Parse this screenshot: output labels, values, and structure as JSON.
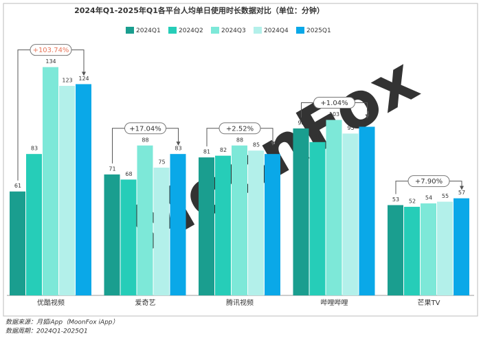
{
  "chart_data": {
    "type": "bar",
    "title": "2024年Q1-2025年Q1各平台人均单日使用时长数据对比（单位：分钟）",
    "categories": [
      "优酷视频",
      "爱奇艺",
      "腾讯视频",
      "哔哩哔哩",
      "芒果TV"
    ],
    "series": [
      {
        "name": "2024Q1",
        "color": "#1a9e8f",
        "values": [
          61,
          71,
          81,
          98,
          53
        ]
      },
      {
        "name": "2024Q2",
        "color": "#26cdb8",
        "values": [
          83,
          68,
          82,
          90,
          52
        ]
      },
      {
        "name": "2024Q3",
        "color": "#7de8d8",
        "values": [
          134,
          88,
          88,
          103,
          54
        ]
      },
      {
        "name": "2024Q4",
        "color": "#b3f0ea",
        "values": [
          123,
          75,
          85,
          95,
          55
        ]
      },
      {
        "name": "2025Q1",
        "color": "#0aa8e8",
        "values": [
          124,
          83,
          83,
          99,
          57
        ]
      }
    ],
    "growth": [
      "+103.74%",
      "+17.04%",
      "+2.52%",
      "+1.04%",
      "+7.90%"
    ],
    "ylim": [
      0,
      150
    ],
    "watermark": "MoonFox",
    "source": "数据来源：月狐iApp（MoonFox iApp）",
    "period": "数据周期：2024Q1-2025Q1"
  }
}
